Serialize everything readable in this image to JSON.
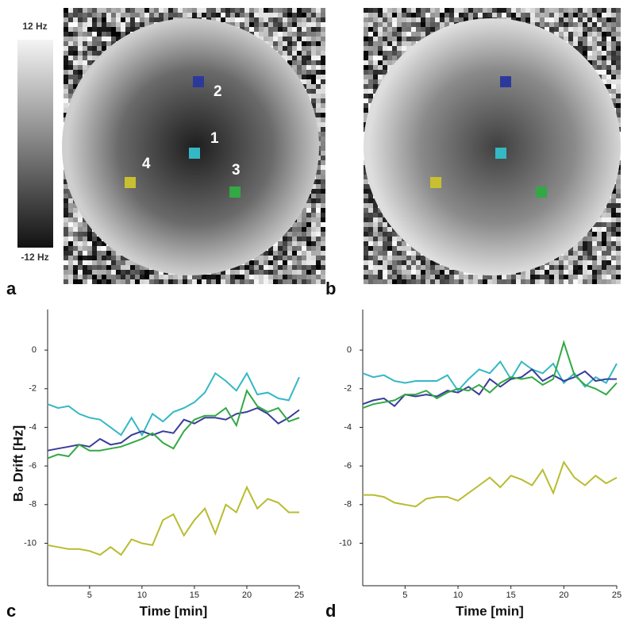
{
  "figure": {
    "colorbar": {
      "max_label": "12 Hz",
      "min_label": "-12 Hz"
    },
    "panels": [
      {
        "label": "a",
        "roi_labels": [
          "1",
          "2",
          "3",
          "4"
        ]
      },
      {
        "label": "b"
      }
    ]
  },
  "chart_data": [
    {
      "type": "line",
      "panel_label": "c",
      "ylabel": "B₀ Drift [Hz]",
      "xlabel": "Time [min]",
      "x": [
        1,
        2,
        3,
        4,
        5,
        6,
        7,
        8,
        9,
        10,
        11,
        12,
        13,
        14,
        15,
        16,
        17,
        18,
        19,
        20,
        21,
        22,
        23,
        24,
        25
      ],
      "xlim": [
        1,
        25
      ],
      "xticks": [
        5,
        10,
        15,
        20,
        25
      ],
      "ylim": [
        -12.2,
        2.1
      ],
      "yticks": [
        0,
        -2,
        -4,
        -6,
        -8,
        -10
      ],
      "series": [
        {
          "color": "#35b8c4",
          "values": [
            -2.8,
            -3.0,
            -2.9,
            -3.3,
            -3.5,
            -3.6,
            -4.0,
            -4.4,
            -3.5,
            -4.4,
            -3.3,
            -3.7,
            -3.2,
            -3.0,
            -2.7,
            -2.2,
            -1.2,
            -1.6,
            -2.1,
            -1.2,
            -2.3,
            -2.2,
            -2.5,
            -2.6,
            -1.4
          ]
        },
        {
          "color": "#3a3d9a",
          "values": [
            -5.2,
            -5.1,
            -5.0,
            -4.9,
            -5.0,
            -4.6,
            -4.9,
            -4.8,
            -4.4,
            -4.2,
            -4.4,
            -4.2,
            -4.3,
            -3.6,
            -3.8,
            -3.5,
            -3.5,
            -3.6,
            -3.3,
            -3.2,
            -3.0,
            -3.3,
            -3.8,
            -3.5,
            -3.1
          ]
        },
        {
          "color": "#33a844",
          "values": [
            -5.6,
            -5.4,
            -5.5,
            -4.9,
            -5.2,
            -5.2,
            -5.1,
            -5.0,
            -4.8,
            -4.6,
            -4.3,
            -4.8,
            -5.1,
            -4.2,
            -3.6,
            -3.4,
            -3.4,
            -3.0,
            -3.9,
            -2.1,
            -2.9,
            -3.2,
            -3.0,
            -3.7,
            -3.5
          ]
        },
        {
          "color": "#b8bc30",
          "values": [
            -10.1,
            -10.2,
            -10.3,
            -10.3,
            -10.4,
            -10.6,
            -10.2,
            -10.6,
            -9.8,
            -10.0,
            -10.1,
            -8.8,
            -8.5,
            -9.6,
            -8.8,
            -8.2,
            -9.5,
            -8.0,
            -8.4,
            -7.1,
            -8.2,
            -7.7,
            -7.9,
            -8.4,
            -8.4
          ]
        }
      ]
    },
    {
      "type": "line",
      "panel_label": "d",
      "xlabel": "Time [min]",
      "x": [
        1,
        2,
        3,
        4,
        5,
        6,
        7,
        8,
        9,
        10,
        11,
        12,
        13,
        14,
        15,
        16,
        17,
        18,
        19,
        20,
        21,
        22,
        23,
        24,
        25
      ],
      "xlim": [
        1,
        25
      ],
      "xticks": [
        5,
        10,
        15,
        20,
        25
      ],
      "ylim": [
        -12.2,
        2.1
      ],
      "yticks": [
        0,
        -2,
        -4,
        -6,
        -8,
        -10
      ],
      "series": [
        {
          "color": "#35b8c4",
          "values": [
            -1.2,
            -1.4,
            -1.3,
            -1.6,
            -1.7,
            -1.6,
            -1.6,
            -1.6,
            -1.3,
            -2.1,
            -1.5,
            -1.0,
            -1.2,
            -0.6,
            -1.5,
            -0.6,
            -1.0,
            -1.2,
            -0.7,
            -1.7,
            -1.2,
            -1.9,
            -1.4,
            -1.7,
            -0.7
          ]
        },
        {
          "color": "#3a3d9a",
          "values": [
            -2.8,
            -2.6,
            -2.5,
            -2.9,
            -2.3,
            -2.4,
            -2.3,
            -2.4,
            -2.1,
            -2.2,
            -1.9,
            -2.3,
            -1.5,
            -1.9,
            -1.5,
            -1.4,
            -1.0,
            -1.6,
            -1.3,
            -1.6,
            -1.4,
            -1.1,
            -1.6,
            -1.5,
            -1.5
          ]
        },
        {
          "color": "#33a844",
          "values": [
            -3.0,
            -2.8,
            -2.7,
            -2.6,
            -2.3,
            -2.3,
            -2.1,
            -2.5,
            -2.2,
            -2.0,
            -2.1,
            -1.8,
            -2.2,
            -1.7,
            -1.4,
            -1.5,
            -1.4,
            -1.8,
            -1.5,
            0.4,
            -1.3,
            -1.8,
            -2.0,
            -2.3,
            -1.7
          ]
        },
        {
          "color": "#b8bc30",
          "values": [
            -7.5,
            -7.5,
            -7.6,
            -7.9,
            -8.0,
            -8.1,
            -7.7,
            -7.6,
            -7.6,
            -7.8,
            -7.4,
            -7.0,
            -6.6,
            -7.1,
            -6.5,
            -6.7,
            -7.0,
            -6.2,
            -7.4,
            -5.8,
            -6.6,
            -7.0,
            -6.5,
            -6.9,
            -6.6
          ]
        }
      ]
    }
  ]
}
